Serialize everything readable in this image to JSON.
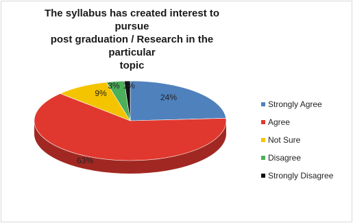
{
  "title_lines": [
    "The syllabus has created interest to pursue",
    "post graduation / Research in the particular",
    "topic"
  ],
  "chart_data": {
    "type": "pie",
    "title": "The syllabus has created interest to pursue post graduation / Research in the particular topic",
    "categories": [
      "Strongly Agree",
      "Agree",
      "Not Sure",
      "Disagree",
      "Strongly Disagree"
    ],
    "values": [
      24,
      63,
      9,
      3,
      1
    ],
    "data_labels": [
      "24%",
      "63%",
      "9%",
      "3%",
      "1%"
    ],
    "colors": [
      "#4F81BD",
      "#E0382F",
      "#F5C400",
      "#4CAF5A",
      "#111111"
    ],
    "legend_position": "right",
    "style": "3d"
  }
}
